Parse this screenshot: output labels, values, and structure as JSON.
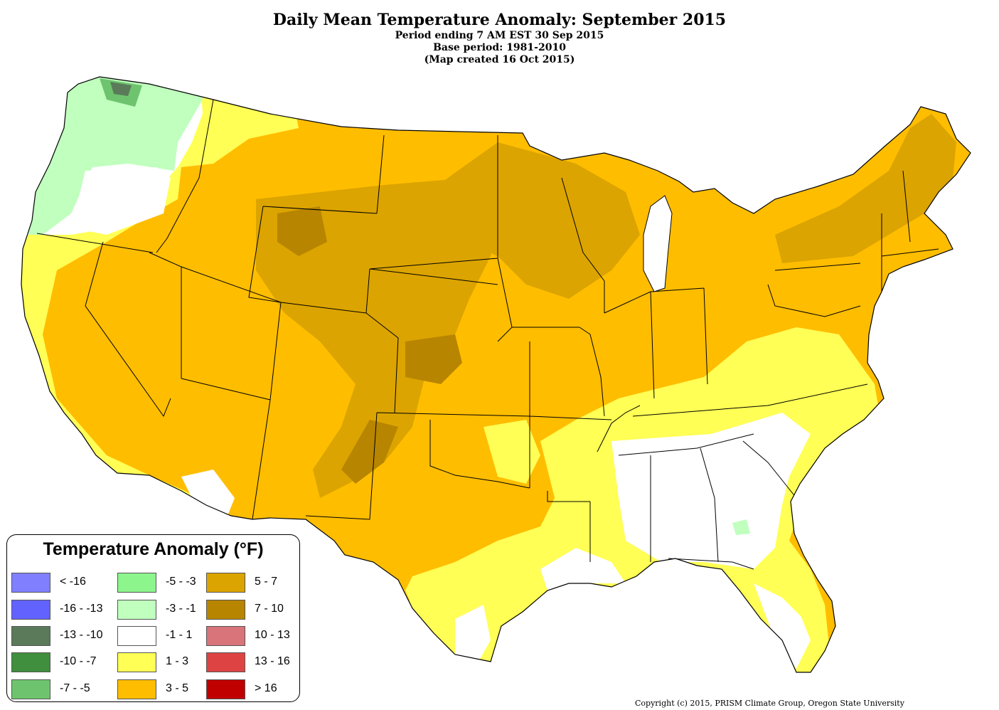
{
  "title": "Daily Mean Temperature Anomaly: September 2015",
  "subtitle_lines": [
    "Period ending 7 AM EST 30 Sep 2015",
    "Base period: 1981-2010",
    "(Map created 16 Oct 2015)"
  ],
  "legend": {
    "title": "Temperature Anomaly (°F)",
    "items": [
      {
        "label": "< -16",
        "color": "#8080ff"
      },
      {
        "label": "-16 - -13",
        "color": "#6262ff"
      },
      {
        "label": "-13 - -10",
        "color": "#5a7a5a"
      },
      {
        "label": "-10 - -7",
        "color": "#3f8f3f"
      },
      {
        "label": "-7 - -5",
        "color": "#6ec46e"
      },
      {
        "label": "-5 - -3",
        "color": "#8cf58c"
      },
      {
        "label": "-3 - -1",
        "color": "#c0ffbe"
      },
      {
        "label": "-1 - 1",
        "color": "#ffffff"
      },
      {
        "label": "1 - 3",
        "color": "#ffff55"
      },
      {
        "label": "3 - 5",
        "color": "#ffbd00"
      },
      {
        "label": "5 - 7",
        "color": "#dba400"
      },
      {
        "label": "7 - 10",
        "color": "#b88500"
      },
      {
        "label": "10 - 13",
        "color": "#d9747a"
      },
      {
        "label": "13 - 16",
        "color": "#de4343"
      },
      {
        "label": "> 16",
        "color": "#c00000"
      }
    ]
  },
  "copyright": "Copyright (c) 2015, PRISM Climate Group, Oregon State University"
}
